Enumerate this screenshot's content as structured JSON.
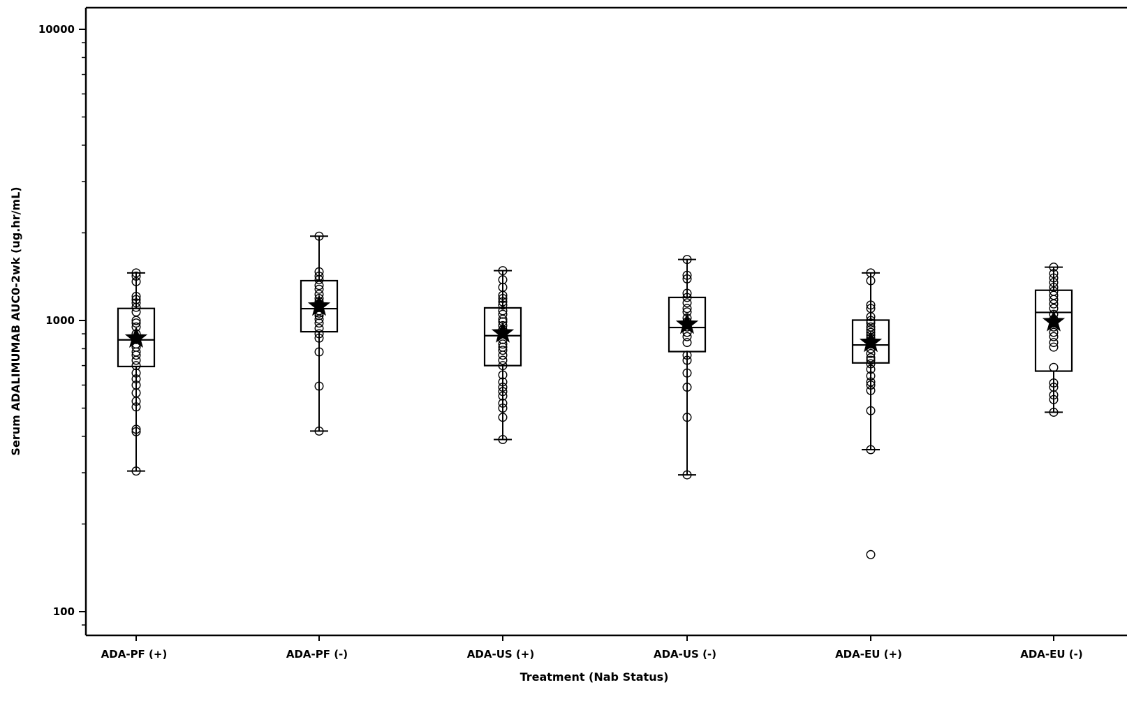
{
  "chart_data": {
    "type": "box",
    "xlabel": "Treatment (Nab Status)",
    "ylabel": "Serum ADALIMUMAB AUC0-2wk (ug.hr/mL)",
    "yscale": "log",
    "ylim": [
      88,
      11800
    ],
    "yticks": [
      100,
      1000,
      10000
    ],
    "ytick_labels": [
      "100",
      "1000",
      "10000"
    ],
    "grid": false,
    "legend": "none",
    "colors": {
      "stroke": "#000000",
      "background": "#ffffff"
    },
    "categories": [
      "ADA-PF (+)",
      "ADA-PF (-)",
      "ADA-US (+)",
      "ADA-US (-)",
      "ADA-EU (+)",
      "ADA-EU (-)"
    ],
    "boxes": [
      {
        "q1": 695,
        "median": 858,
        "q3": 1100,
        "mean": 870,
        "whisker_low": 304,
        "whisker_high": 1457
      },
      {
        "q1": 915,
        "median": 1098,
        "q3": 1370,
        "mean": 1120,
        "whisker_low": 417,
        "whisker_high": 1948
      },
      {
        "q1": 700,
        "median": 887,
        "q3": 1105,
        "mean": 905,
        "whisker_low": 390,
        "whisker_high": 1483
      },
      {
        "q1": 782,
        "median": 946,
        "q3": 1200,
        "mean": 970,
        "whisker_low": 295,
        "whisker_high": 1620
      },
      {
        "q1": 715,
        "median": 824,
        "q3": 1003,
        "mean": 840,
        "whisker_low": 360,
        "whisker_high": 1457
      },
      {
        "q1": 670,
        "median": 1066,
        "q3": 1270,
        "mean": 990,
        "whisker_low": 484,
        "whisker_high": 1525
      }
    ],
    "points": [
      [
        304,
        415,
        423,
        505,
        528,
        564,
        600,
        630,
        660,
        700,
        730,
        760,
        780,
        810,
        830,
        860,
        900,
        950,
        980,
        1000,
        1070,
        1110,
        1150,
        1180,
        1210,
        1360,
        1420,
        1457
      ],
      [
        417,
        595,
        780,
        870,
        900,
        940,
        980,
        1010,
        1040,
        1060,
        1080,
        1110,
        1140,
        1160,
        1190,
        1230,
        1280,
        1320,
        1380,
        1420,
        1470,
        1948
      ],
      [
        390,
        465,
        500,
        520,
        550,
        570,
        590,
        615,
        650,
        700,
        730,
        760,
        790,
        810,
        830,
        860,
        900,
        930,
        960,
        990,
        1010,
        1050,
        1080,
        1130,
        1160,
        1190,
        1220,
        1300,
        1380,
        1483
      ],
      [
        295,
        465,
        590,
        660,
        730,
        760,
        840,
        880,
        910,
        950,
        990,
        1020,
        1070,
        1100,
        1150,
        1200,
        1240,
        1390,
        1430,
        1620
      ],
      [
        157,
        360,
        490,
        575,
        600,
        615,
        645,
        680,
        710,
        730,
        745,
        770,
        800,
        830,
        850,
        870,
        890,
        910,
        930,
        950,
        980,
        1000,
        1030,
        1100,
        1130,
        1370,
        1457
      ],
      [
        484,
        535,
        555,
        590,
        610,
        690,
        810,
        840,
        880,
        910,
        950,
        980,
        1010,
        1050,
        1100,
        1140,
        1180,
        1220,
        1260,
        1300,
        1350,
        1400,
        1450,
        1525
      ]
    ]
  }
}
